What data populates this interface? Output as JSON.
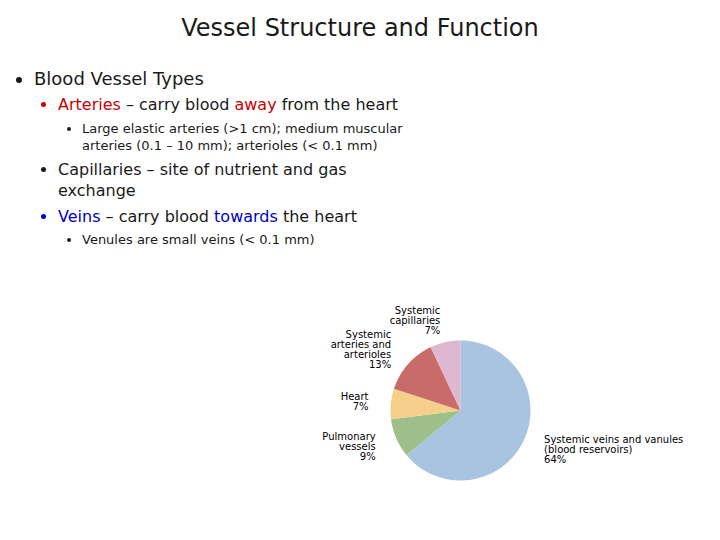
{
  "chart_data": {
    "type": "pie",
    "title": "Vessel Structure and Function",
    "categories": [
      "Systemic veins and vanules\n(blood reservoirs)",
      "Pulmonary\nvessels",
      "Heart",
      "Systemic\narteries and\narterioles",
      "Systemic\ncapillaries"
    ],
    "values": [
      64,
      9,
      7,
      13,
      7
    ],
    "value_labels": [
      "64%",
      "9%",
      "7%",
      "13%",
      "7%"
    ],
    "data_labels": true,
    "colors": [
      "#a8c4e0",
      "#9dc08b",
      "#f5d08a",
      "#c96b6b",
      "#ddb8d0"
    ],
    "annotations": [
      {
        "segments": [
          {
            "text": "Blood Vessel Types",
            "color": "#1a1a1a"
          }
        ],
        "items": [
          {
            "segments": [
              {
                "text": "Arteries",
                "color": "#cc0000"
              },
              {
                "text": " – carry blood ",
                "color": "#1a1a1a"
              },
              {
                "text": "away",
                "color": "#cc0000"
              },
              {
                "text": " from the heart",
                "color": "#1a1a1a"
              }
            ],
            "items": [
              {
                "segments": [
                  {
                    "text": "Large elastic arteries (>1 cm); medium muscular arteries (0.1 – 10 mm); arterioles (< 0.1 mm)",
                    "color": "#1a1a1a"
                  }
                ]
              }
            ]
          },
          {
            "segments": [
              {
                "text": "Capillaries – site of nutrient and gas exchange",
                "color": "#1a1a1a"
              }
            ]
          },
          {
            "segments": [
              {
                "text": "Veins",
                "color": "#0000cc"
              },
              {
                "text": " – carry blood ",
                "color": "#1a1a1a"
              },
              {
                "text": "towards",
                "color": "#0000cc"
              },
              {
                "text": " the heart",
                "color": "#1a1a1a"
              }
            ],
            "items": [
              {
                "segments": [
                  {
                    "text": "Venules are small veins (< 0.1 mm)",
                    "color": "#1a1a1a"
                  }
                ]
              }
            ]
          }
        ]
      }
    ]
  }
}
